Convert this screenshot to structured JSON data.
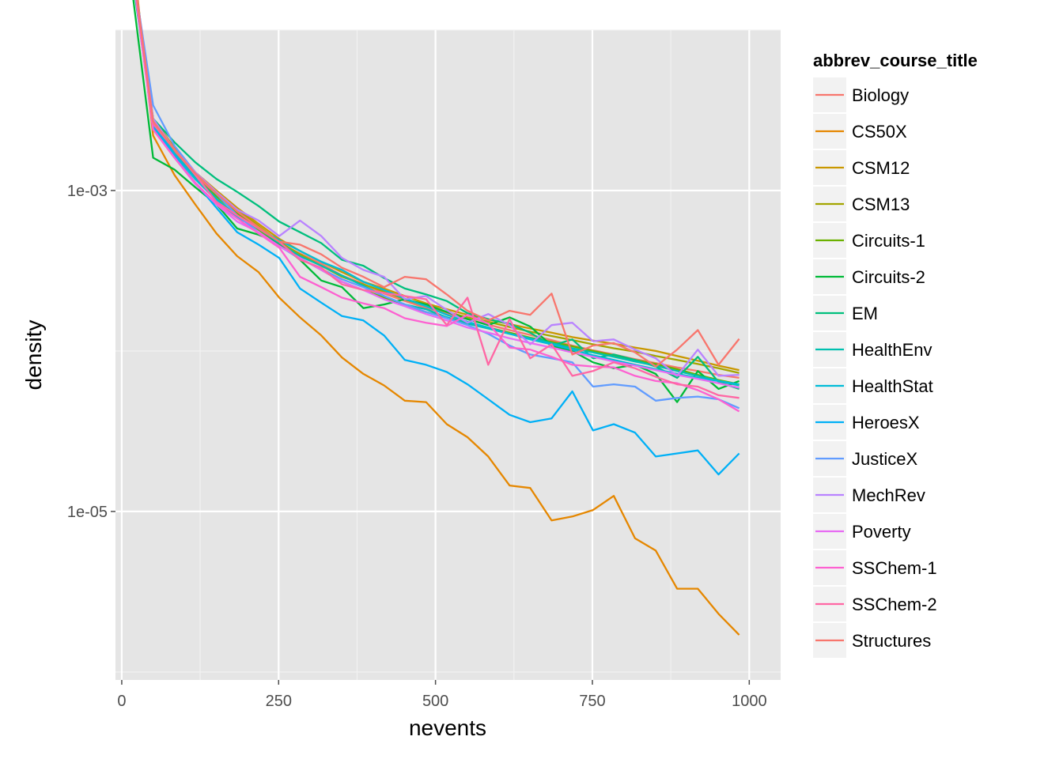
{
  "chart_data": {
    "type": "line",
    "title": "",
    "xlabel": "nevents",
    "ylabel": "density",
    "xlim": [
      -10,
      1050
    ],
    "ylim_log10": [
      -6.05,
      -2.0
    ],
    "y_scale": "log10",
    "x_ticks": [
      0,
      250,
      500,
      750,
      1000
    ],
    "x_tick_labels": [
      "0",
      "250",
      "500",
      "750",
      "1000"
    ],
    "y_ticks": [
      0.001,
      1e-05
    ],
    "y_tick_labels": [
      "1e-03",
      "1e-05"
    ],
    "grid": true,
    "legend": {
      "title": "abbrev_course_title",
      "position": "right"
    },
    "x": [
      18,
      50,
      84,
      117,
      151,
      184,
      218,
      251,
      284,
      318,
      351,
      385,
      418,
      451,
      485,
      518,
      551,
      584,
      618,
      651,
      685,
      718,
      751,
      784,
      818,
      851,
      885,
      918,
      951,
      984
    ],
    "series": [
      {
        "name": "Biology",
        "color": "#F8766D",
        "values": [
          0.0235,
          0.0026,
          0.00175,
          0.00122,
          0.00095,
          0.00072,
          0.00058,
          0.00047,
          0.000405,
          0.00035,
          0.000295,
          0.000262,
          0.000228,
          0.000205,
          0.000185,
          0.000172,
          0.000158,
          0.000146,
          0.000135,
          0.000126,
          0.000117,
          0.000108,
          0.000101,
          9.5e-05,
          8.9e-05,
          8.4e-05,
          7.9e-05,
          7.5e-05,
          7.1e-05,
          6.8e-05
        ]
      },
      {
        "name": "CS50X",
        "color": "#E58700",
        "values": [
          0.0285,
          0.0022,
          0.00125,
          0.00082,
          0.00054,
          0.00039,
          0.00031,
          0.000215,
          0.000162,
          0.000125,
          9.1e-05,
          7.2e-05,
          6.1e-05,
          4.9e-05,
          4.8e-05,
          3.5e-05,
          2.9e-05,
          2.2e-05,
          1.45e-05,
          1.4e-05,
          8.8e-06,
          9.3e-06,
          1.02e-05,
          1.25e-05,
          6.8e-06,
          5.7e-06,
          3.3e-06,
          3.3e-06,
          2.3e-06,
          1.7e-06
        ]
      },
      {
        "name": "CSM12",
        "color": "#C99800",
        "values": [
          0.025,
          0.0028,
          0.00185,
          0.0013,
          0.001,
          0.00078,
          0.00062,
          0.0005,
          0.00042,
          0.00036,
          0.00031,
          0.00027,
          0.000245,
          0.00022,
          0.000198,
          0.000182,
          0.000168,
          0.000157,
          0.000147,
          0.000138,
          0.00013,
          0.000122,
          0.000116,
          0.000111,
          0.000105,
          0.0001,
          9.3e-05,
          8.7e-05,
          8.1e-05,
          7.6e-05
        ]
      },
      {
        "name": "CSM13",
        "color": "#A3A500",
        "values": [
          0.0245,
          0.0027,
          0.0018,
          0.00127,
          0.00097,
          0.00076,
          0.0006,
          0.00048,
          0.0004,
          0.00034,
          0.00029,
          0.00026,
          0.000235,
          0.00021,
          0.00019,
          0.000175,
          0.000162,
          0.000152,
          0.000141,
          0.000132,
          0.000124,
          0.000117,
          0.00011,
          0.000104,
          9.9e-05,
          9.3e-05,
          8.8e-05,
          8.3e-05,
          7.8e-05,
          7.3e-05
        ]
      },
      {
        "name": "Circuits-1",
        "color": "#6BB100",
        "values": [
          0.024,
          0.0025,
          0.0017,
          0.0012,
          0.00092,
          0.00072,
          0.00057,
          0.00046,
          0.00038,
          0.00032,
          0.00027,
          0.00024,
          0.000215,
          0.000192,
          0.000175,
          0.000162,
          0.00015,
          0.00014,
          0.00013,
          0.000121,
          0.000114,
          0.000107,
          0.0001,
          9.4e-05,
          8.8e-05,
          8.3e-05,
          7.7e-05,
          7.1e-05,
          6.6e-05,
          6.2e-05
        ]
      },
      {
        "name": "Circuits-2",
        "color": "#00BA38",
        "values": [
          0.016,
          0.0016,
          0.00135,
          0.00105,
          0.00082,
          0.00058,
          0.00053,
          0.00047,
          0.00037,
          0.000275,
          0.00025,
          0.000185,
          0.000195,
          0.00021,
          0.000195,
          0.000175,
          0.000158,
          0.000145,
          0.000162,
          0.000142,
          0.000108,
          0.0001,
          8.5e-05,
          7.8e-05,
          8.2e-05,
          7.2e-05,
          4.8e-05,
          7.5e-05,
          5.8e-05,
          6.5e-05
        ]
      },
      {
        "name": "EM",
        "color": "#00BF7D",
        "values": [
          0.02,
          0.0028,
          0.002,
          0.0015,
          0.00118,
          0.00098,
          0.0008,
          0.00064,
          0.00055,
          0.00047,
          0.00037,
          0.00034,
          0.000285,
          0.000245,
          0.000225,
          0.000205,
          0.000172,
          0.000158,
          0.000148,
          0.00013,
          0.000108,
          0.000118,
          9e-05,
          9.5e-05,
          8.8e-05,
          8e-05,
          6.8e-05,
          9.2e-05,
          6.4e-05,
          5.8e-05
        ]
      },
      {
        "name": "HealthEnv",
        "color": "#00C0AF",
        "values": [
          0.02,
          0.0026,
          0.0017,
          0.00122,
          0.00089,
          0.00069,
          0.00058,
          0.00047,
          0.00039,
          0.00034,
          0.000295,
          0.000255,
          0.00022,
          0.000195,
          0.000182,
          0.000162,
          0.000148,
          0.000138,
          0.000128,
          0.00012,
          0.000112,
          0.000104,
          9.8e-05,
          9.2e-05,
          8.6e-05,
          8.1e-05,
          7.5e-05,
          7e-05,
          6.5e-05,
          6.1e-05
        ]
      },
      {
        "name": "HealthStat",
        "color": "#00BCD8",
        "values": [
          0.021,
          0.0026,
          0.0017,
          0.00118,
          0.00087,
          0.00068,
          0.00058,
          0.00049,
          0.00042,
          0.00036,
          0.00032,
          0.00027,
          0.00024,
          0.000212,
          0.00019,
          0.000168,
          0.000152,
          0.00014,
          0.000128,
          0.000118,
          0.00011,
          0.000102,
          9.4e-05,
          8.8e-05,
          8.2e-05,
          7.7e-05,
          7.2e-05,
          6.8e-05,
          6.5e-05,
          6.2e-05
        ]
      },
      {
        "name": "HeroesX",
        "color": "#00B0F6",
        "values": [
          0.0225,
          0.0025,
          0.00165,
          0.00112,
          0.00078,
          0.00055,
          0.00046,
          0.00038,
          0.000245,
          0.0002,
          0.000165,
          0.000155,
          0.000125,
          8.8e-05,
          8.2e-05,
          7.4e-05,
          6.2e-05,
          5e-05,
          4e-05,
          3.6e-05,
          3.8e-05,
          5.6e-05,
          3.2e-05,
          3.5e-05,
          3.1e-05,
          2.2e-05,
          2.3e-05,
          2.4e-05,
          1.7e-05,
          2.3e-05
        ]
      },
      {
        "name": "JusticeX",
        "color": "#619CFF",
        "values": [
          0.023,
          0.0034,
          0.0019,
          0.0013,
          0.00095,
          0.0007,
          0.00055,
          0.00045,
          0.000375,
          0.000325,
          0.00028,
          0.00025,
          0.00022,
          0.000195,
          0.000175,
          0.00016,
          0.000145,
          0.000128,
          0.000108,
          9.5e-05,
          9e-05,
          8.5e-05,
          6e-05,
          6.2e-05,
          6e-05,
          4.9e-05,
          5.1e-05,
          5.2e-05,
          5e-05,
          4.4e-05
        ]
      },
      {
        "name": "MechRev",
        "color": "#B983FF",
        "values": [
          0.0235,
          0.0028,
          0.0018,
          0.0013,
          0.00098,
          0.00076,
          0.00065,
          0.00052,
          0.00065,
          0.00052,
          0.00038,
          0.00032,
          0.00029,
          0.00021,
          0.00022,
          0.00018,
          0.00015,
          0.00017,
          0.000145,
          0.00011,
          0.000145,
          0.00015,
          0.000115,
          0.000118,
          0.000102,
          9e-05,
          7e-05,
          0.000102,
          7e-05,
          7.1e-05
        ]
      },
      {
        "name": "Poverty",
        "color": "#E76BF3",
        "values": [
          0.022,
          0.0024,
          0.0016,
          0.0011,
          0.00082,
          0.00064,
          0.00055,
          0.00045,
          0.00038,
          0.00032,
          0.00027,
          0.00024,
          0.00021,
          0.00019,
          0.00017,
          0.000155,
          0.00014,
          0.00013,
          0.00012,
          0.000112,
          0.000105,
          9.8e-05,
          9.2e-05,
          8.6e-05,
          8.1e-05,
          7.6e-05,
          7.1e-05,
          6.7e-05,
          6.3e-05,
          5.9e-05
        ]
      },
      {
        "name": "SSChem-1",
        "color": "#FD61D1",
        "values": [
          0.0215,
          0.0024,
          0.0016,
          0.00112,
          0.00083,
          0.00067,
          0.00054,
          0.00044,
          0.00029,
          0.00025,
          0.000215,
          0.000198,
          0.000185,
          0.00016,
          0.00015,
          0.000143,
          0.000168,
          0.000148,
          0.000105,
          0.000102,
          9.2e-05,
          8.2e-05,
          8e-05,
          7.9e-05,
          7e-05,
          6.5e-05,
          6.3e-05,
          5.7e-05,
          5e-05,
          4.2e-05
        ]
      },
      {
        "name": "SSChem-2",
        "color": "#FF67A4",
        "values": [
          0.025,
          0.0026,
          0.0018,
          0.00125,
          0.00085,
          0.0007,
          0.00058,
          0.00048,
          0.00037,
          0.00033,
          0.00026,
          0.00024,
          0.00023,
          0.00022,
          0.00021,
          0.000145,
          0.000215,
          8.2e-05,
          0.000158,
          9e-05,
          0.00011,
          7e-05,
          7.5e-05,
          8.5e-05,
          7.8e-05,
          6.9e-05,
          6.2e-05,
          6e-05,
          5.3e-05,
          5.1e-05
        ]
      },
      {
        "name": "Structures",
        "color": "#F8766D",
        "values": [
          0.024,
          0.0027,
          0.0018,
          0.00128,
          0.00096,
          0.00074,
          0.00059,
          0.00048,
          0.00046,
          0.0004,
          0.00033,
          0.00029,
          0.00025,
          0.00029,
          0.00028,
          0.000225,
          0.000178,
          0.000155,
          0.000178,
          0.000168,
          0.000228,
          9.5e-05,
          0.000108,
          0.000112,
          9.8e-05,
          8e-05,
          0.000102,
          0.000135,
          8.2e-05,
          0.000119
        ]
      }
    ]
  }
}
